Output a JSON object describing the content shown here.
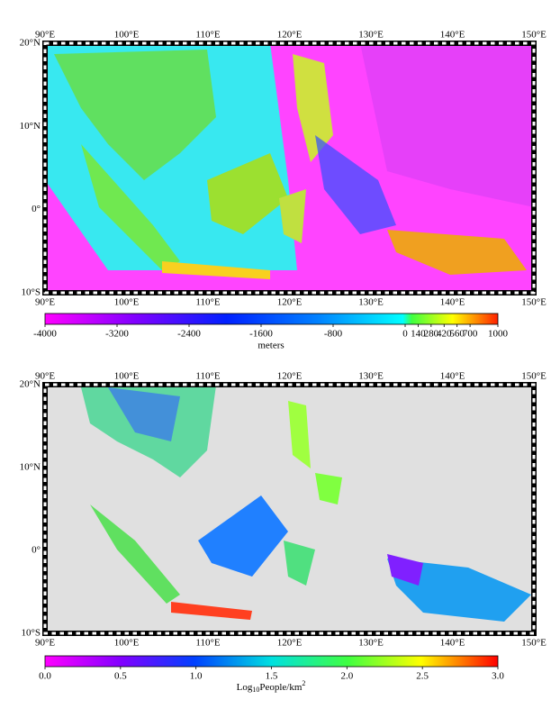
{
  "maps": [
    {
      "lon_labels": [
        "90°E",
        "100°E",
        "110°E",
        "120°E",
        "130°E",
        "140°E",
        "150°E"
      ],
      "lat_labels": [
        "20°N",
        "10°N",
        "0°",
        "10°S"
      ],
      "colorbar": {
        "ticks": [
          -4000,
          -3200,
          -2400,
          -1600,
          -800,
          0,
          140,
          280,
          420,
          560,
          700,
          1000
        ],
        "label": "meters"
      }
    },
    {
      "lon_labels": [
        "90°E",
        "100°E",
        "110°E",
        "120°E",
        "130°E",
        "140°E",
        "150°E"
      ],
      "lat_labels": [
        "20°N",
        "10°N",
        "0°",
        "10°S"
      ],
      "colorbar": {
        "ticks": [
          {
            "value": 0,
            "label": "0.0"
          },
          {
            "value": 0.5,
            "label": "0.5"
          },
          {
            "value": 1,
            "label": "1.0"
          },
          {
            "value": 1.5,
            "label": "1.5"
          },
          {
            "value": 2,
            "label": "2.0"
          },
          {
            "value": 2.5,
            "label": "2.5"
          },
          {
            "value": 3,
            "label": "3.0"
          }
        ],
        "label": {
          "prefix": "Log",
          "sub": "10",
          "main": "People/km",
          "sup": "2"
        }
      }
    }
  ]
}
